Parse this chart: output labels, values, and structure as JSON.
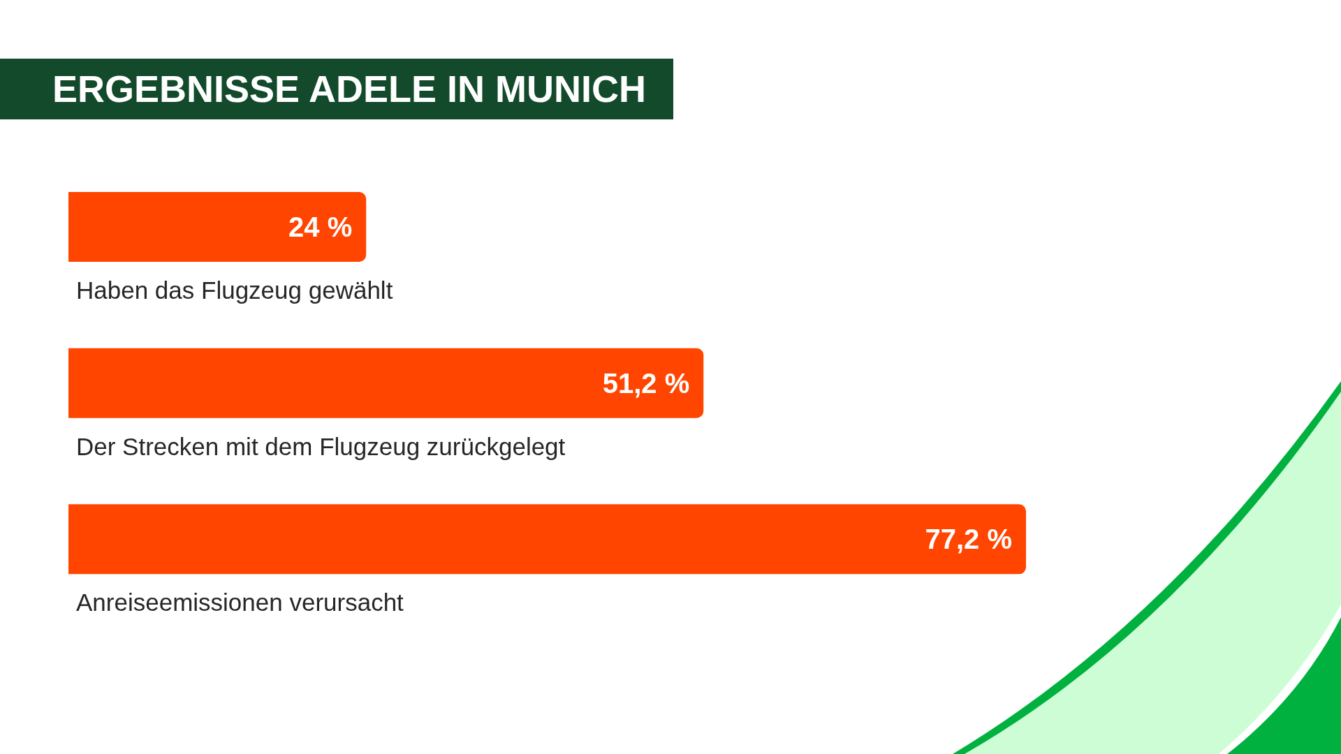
{
  "chart_data": {
    "type": "bar",
    "orientation": "horizontal",
    "title": "ERGEBNISSE ADELE IN MUNICH",
    "categories": [
      "Haben das Flugzeug gewählt",
      "Der Strecken mit dem Flugzeug zurückgelegt",
      "Anreiseemissionen verursacht"
    ],
    "values": [
      24,
      51.2,
      77.2
    ],
    "color": "#ff4500",
    "value_labels": [
      "24 %",
      "51,2 %",
      "77,2 %"
    ]
  }
}
